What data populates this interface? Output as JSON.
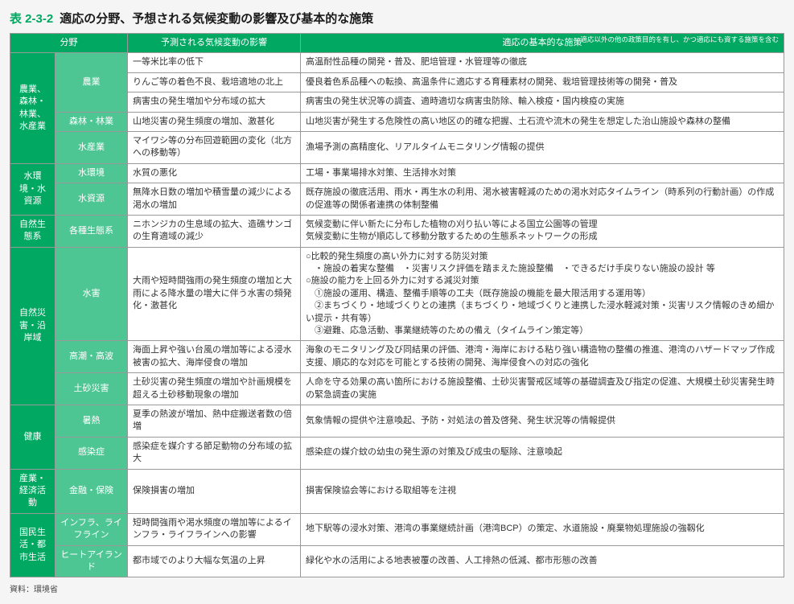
{
  "title_num": "表 2-3-2",
  "title_text": "適応の分野、予想される気候変動の影響及び基本的な施策",
  "headers": {
    "field": "分野",
    "impact": "予測される気候変動の影響",
    "measure": "適応の基本的な施策",
    "measure_sub": "適応以外の他の政策目的を有し、かつ適応にも資する施策を含む"
  },
  "source": "資料：環境省",
  "rows": [
    {
      "c1": "農業、森林・林業、水産業",
      "c1_rows": 5,
      "c2": "農業",
      "c2_rows": 3,
      "impact": "一等米比率の低下",
      "measure": "高温耐性品種の開発・普及、肥培管理・水管理等の徹底"
    },
    {
      "impact": "りんご等の着色不良、栽培適地の北上",
      "measure": "優良着色系品種への転換、高温条件に適応する育種素材の開発、栽培管理技術等の開発・普及"
    },
    {
      "impact": "病害虫の発生増加や分布域の拡大",
      "measure": "病害虫の発生状況等の調査、適時適切な病害虫防除、輸入検疫・国内検疫の実施"
    },
    {
      "c2": "森林・林業",
      "c2_rows": 1,
      "impact": "山地災害の発生頻度の増加、激甚化",
      "measure": "山地災害が発生する危険性の高い地区の的確な把握、土石流や流木の発生を想定した治山施設や森林の整備"
    },
    {
      "c2": "水産業",
      "c2_rows": 1,
      "impact": "マイワシ等の分布回遊範囲の変化（北方への移動等）",
      "measure": "漁場予測の高精度化、リアルタイムモニタリング情報の提供"
    },
    {
      "c1": "水環境・水資源",
      "c1_rows": 2,
      "c2": "水環境",
      "c2_rows": 1,
      "impact": "水質の悪化",
      "measure": "工場・事業場排水対策、生活排水対策"
    },
    {
      "c2": "水資源",
      "c2_rows": 1,
      "impact": "無降水日数の増加や積雪量の減少による渇水の増加",
      "measure": "既存施設の徹底活用、雨水・再生水の利用、渇水被害軽減のための渇水対応タイムライン（時系列の行動計画）の作成の促進等の関係者連携の体制整備"
    },
    {
      "c1": "自然生態系",
      "c1_rows": 1,
      "c2": "各種生態系",
      "c2_rows": 1,
      "impact": "ニホンジカの生息域の拡大、造礁サンゴの生育適域の減少",
      "measure": "気候変動に伴い新たに分布した植物の刈り払い等による国立公園等の管理\n気候変動に生物が順応して移動分散するための生態系ネットワークの形成"
    },
    {
      "c1": "自然災害・沿岸域",
      "c1_rows": 3,
      "c2": "水害",
      "c2_rows": 1,
      "impact": "大雨や短時間強雨の発生頻度の増加と大雨による降水量の増大に伴う水害の頻発化・激甚化",
      "measure": "○比較的発生頻度の高い外力に対する防災対策\n　・施設の着実な整備　・災害リスク評価を踏まえた施設整備　・できるだけ手戻りない施設の設計 等\n○施設の能力を上回る外力に対する減災対策\n　①施設の運用、構造、整備手順等の工夫（既存施設の機能を最大限活用する運用等）\n　②まちづくり・地域づくりとの連携（まちづくり・地域づくりと連携した浸水軽減対策・災害リスク情報のきめ細かい提示・共有等）\n　③避難、応急活動、事業継続等のための備え（タイムライン策定等）"
    },
    {
      "c2": "高潮・高波",
      "c2_rows": 1,
      "impact": "海面上昇や強い台風の増加等による浸水被害の拡大、海岸侵食の増加",
      "measure": "海象のモニタリング及び同結果の評価、港湾・海岸における粘り強い構造物の整備の推進、港湾のハザードマップ作成支援、順応的な対応を可能とする技術の開発、海岸侵食への対応の強化"
    },
    {
      "c2": "土砂災害",
      "c2_rows": 1,
      "impact": "土砂災害の発生頻度の増加や計画規模を超える土砂移動現象の増加",
      "measure": "人命を守る効果の高い箇所における施設整備、土砂災害警戒区域等の基礎調査及び指定の促進、大規模土砂災害発生時の緊急調査の実施"
    },
    {
      "c1": "健康",
      "c1_rows": 2,
      "c2": "暑熱",
      "c2_rows": 1,
      "impact": "夏季の熱波が増加、熱中症搬送者数の倍増",
      "measure": "気象情報の提供や注意喚起、予防・対処法の普及啓発、発生状況等の情報提供"
    },
    {
      "c2": "感染症",
      "c2_rows": 1,
      "impact": "感染症を媒介する節足動物の分布域の拡大",
      "measure": "感染症の媒介蚊の幼虫の発生源の対策及び成虫の駆除、注意喚起"
    },
    {
      "c1": "産業・経済活動",
      "c1_rows": 1,
      "c2": "金融・保険",
      "c2_rows": 1,
      "impact": "保険損害の増加",
      "measure": "損害保険協会等における取組等を注視"
    },
    {
      "c1": "国民生活・都市生活",
      "c1_rows": 2,
      "c2": "インフラ、ライフライン",
      "c2_rows": 1,
      "impact": "短時間強雨や渇水頻度の増加等によるインフラ・ライフラインへの影響",
      "measure": "地下駅等の浸水対策、港湾の事業継続計画（港湾BCP）の策定、水道施設・廃棄物処理施設の強靱化"
    },
    {
      "c2": "ヒートアイランド",
      "c2_rows": 1,
      "impact": "都市域でのより大幅な気温の上昇",
      "measure": "緑化や水の活用による地表被覆の改善、人工排熱の低減、都市形態の改善"
    }
  ]
}
